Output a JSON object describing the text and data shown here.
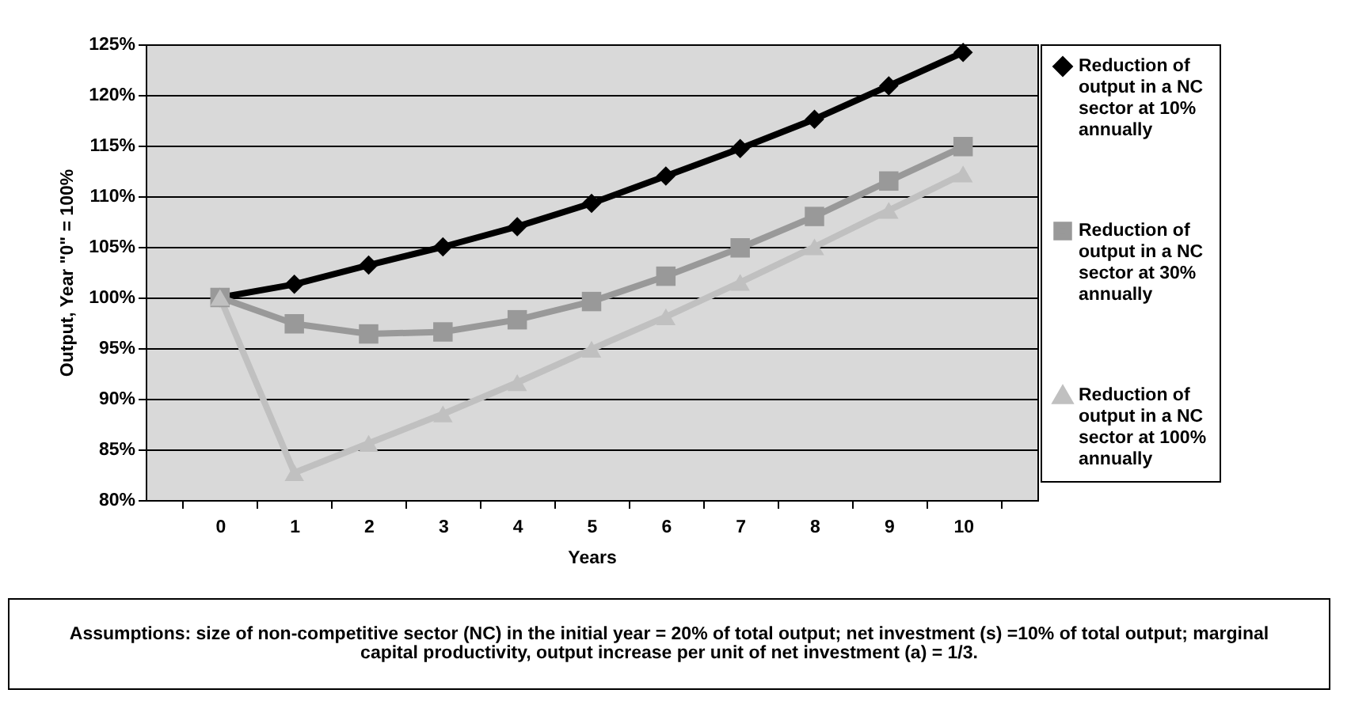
{
  "chart_data": {
    "type": "line",
    "xlabel": "Years",
    "ylabel": "Output, Year \"0\" = 100%",
    "categories": [
      "0",
      "1",
      "2",
      "3",
      "4",
      "5",
      "6",
      "7",
      "8",
      "9",
      "10"
    ],
    "series": [
      {
        "name": "Reduction of output in a NC sector at 10% annually",
        "color": "#000000",
        "marker": "diamond",
        "values": [
          100,
          101.3,
          103.2,
          105.0,
          107.0,
          109.3,
          112.0,
          114.7,
          117.6,
          120.9,
          124.2
        ]
      },
      {
        "name": "Reduction of output in a NC sector at 30% annually",
        "color": "#999999",
        "marker": "square",
        "values": [
          100,
          97.4,
          96.4,
          96.6,
          97.8,
          99.6,
          102.1,
          104.9,
          108.0,
          111.5,
          114.9
        ]
      },
      {
        "name": "Reduction of output in a NC sector at 100% annually",
        "color": "#c0c0c0",
        "marker": "triangle",
        "values": [
          100,
          82.7,
          85.6,
          88.5,
          91.6,
          94.9,
          98.1,
          101.5,
          105.0,
          108.6,
          112.2
        ]
      }
    ],
    "ylim": [
      80,
      125
    ],
    "yticks": [
      {
        "value": 80,
        "label": "80%"
      },
      {
        "value": 85,
        "label": "85%"
      },
      {
        "value": 90,
        "label": "90%"
      },
      {
        "value": 95,
        "label": "95%"
      },
      {
        "value": 100,
        "label": "100%"
      },
      {
        "value": 105,
        "label": "105%"
      },
      {
        "value": 110,
        "label": "110%"
      },
      {
        "value": 115,
        "label": "115%"
      },
      {
        "value": 120,
        "label": "120%"
      },
      {
        "value": 125,
        "label": "125%"
      }
    ],
    "grid": "y",
    "legend": "right",
    "line_style": "solid",
    "annotations": [
      "Assumptions: size of non-competitive sector (NC) in the initial year = 20% of total output; net investment (s) =10% of total output; marginal capital productivity, output increase per unit of net investment (a) = 1/3."
    ]
  }
}
